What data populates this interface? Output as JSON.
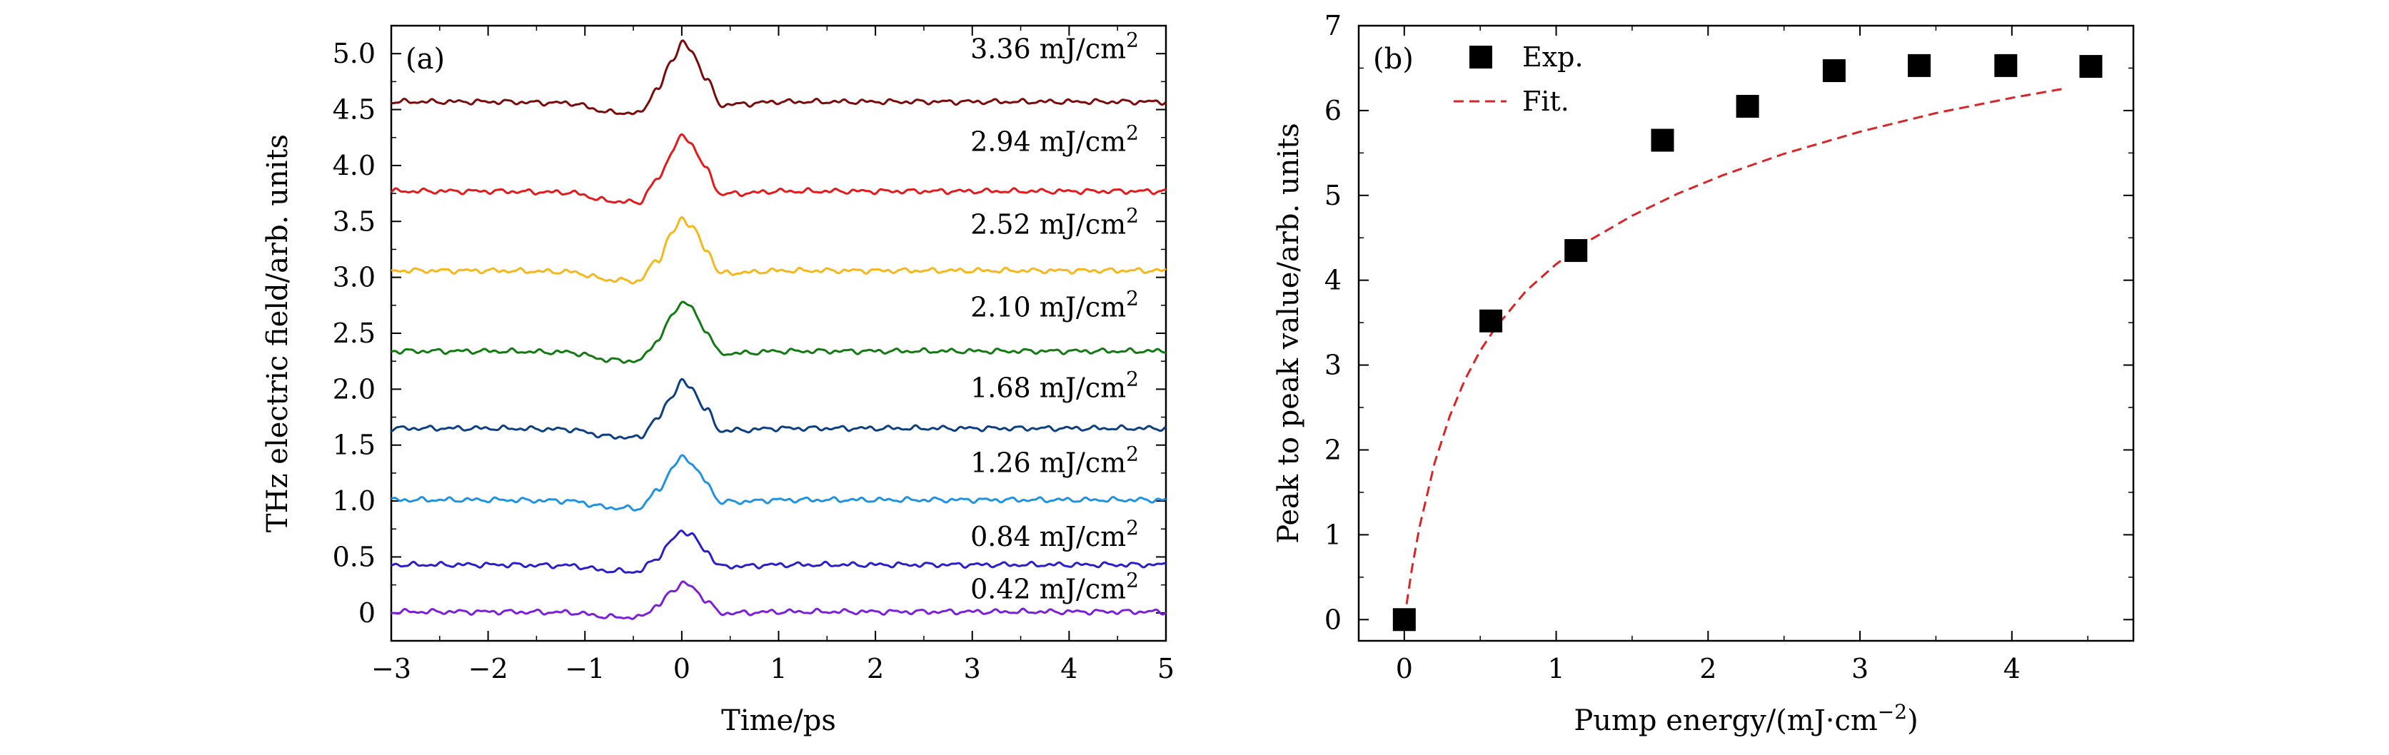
{
  "chart_data": [
    {
      "type": "line",
      "panel_label": "(a)",
      "xlabel": "Time/ps",
      "ylabel": "THz electric field/arb. units",
      "xlim": [
        -3,
        5
      ],
      "ylim": [
        -0.25,
        5.25
      ],
      "xticks": [
        -3,
        -2,
        -1,
        0,
        1,
        2,
        3,
        4,
        5
      ],
      "xtick_labels": [
        "−3",
        "−2",
        "−1",
        "0",
        "1",
        "2",
        "3",
        "4",
        "5"
      ],
      "yticks": [
        0,
        0.5,
        1.0,
        1.5,
        2.0,
        2.5,
        3.0,
        3.5,
        4.0,
        4.5,
        5.0
      ],
      "ytick_labels": [
        "0",
        "0.5",
        "1.0",
        "1.5",
        "2.0",
        "2.5",
        "3.0",
        "3.5",
        "4.0",
        "4.5",
        "5.0"
      ],
      "waveform_shape": {
        "t": [
          -3.0,
          -2.0,
          -1.2,
          -0.7,
          -0.45,
          -0.25,
          -0.1,
          0.0,
          0.1,
          0.25,
          0.4,
          0.6,
          1.0,
          2.0,
          3.0,
          4.0,
          5.0
        ],
        "shape": [
          0.0,
          0.0,
          -0.02,
          -0.18,
          -0.2,
          0.2,
          0.7,
          1.0,
          0.85,
          0.4,
          -0.05,
          -0.04,
          0.0,
          0.0,
          0.0,
          0.0,
          0.0
        ]
      },
      "series": [
        {
          "name": "3.36 mJ/cm",
          "label_base": "3.36 mJ/cm",
          "label_exp": "2",
          "baseline": 4.57,
          "amplitude": 0.53,
          "color": "#7b0a0a"
        },
        {
          "name": "2.94 mJ/cm",
          "label_base": "2.94 mJ/cm",
          "label_exp": "2",
          "baseline": 3.77,
          "amplitude": 0.5,
          "color": "#e31a1c"
        },
        {
          "name": "2.52 mJ/cm",
          "label_base": "2.52 mJ/cm",
          "label_exp": "2",
          "baseline": 3.06,
          "amplitude": 0.47,
          "color": "#f5b71a"
        },
        {
          "name": "2.10 mJ/cm",
          "label_base": "2.10 mJ/cm",
          "label_exp": "2",
          "baseline": 2.34,
          "amplitude": 0.45,
          "color": "#137a13"
        },
        {
          "name": "1.68 mJ/cm",
          "label_base": "1.68 mJ/cm",
          "label_exp": "2",
          "baseline": 1.65,
          "amplitude": 0.42,
          "color": "#0b3f82"
        },
        {
          "name": "1.26 mJ/cm",
          "label_base": "1.26 mJ/cm",
          "label_exp": "2",
          "baseline": 1.01,
          "amplitude": 0.39,
          "color": "#1f92e0"
        },
        {
          "name": "0.84 mJ/cm",
          "label_base": "0.84 mJ/cm",
          "label_exp": "2",
          "baseline": 0.43,
          "amplitude": 0.31,
          "color": "#2a1fc9"
        },
        {
          "name": "0.42 mJ/cm",
          "label_base": "0.42 mJ/cm",
          "label_exp": "2",
          "baseline": 0.01,
          "amplitude": 0.26,
          "color": "#7b1fd8"
        }
      ]
    },
    {
      "type": "scatter",
      "panel_label": "(b)",
      "xlabel_base": "Pump energy/(mJ·cm",
      "xlabel_exp": "−2",
      "xlabel_close": ")",
      "ylabel": "Peak to peak value/arb. units",
      "xlim": [
        -0.3,
        4.8
      ],
      "ylim": [
        -0.25,
        7.0
      ],
      "xticks": [
        0,
        1,
        2,
        3,
        4
      ],
      "xtick_labels": [
        "0",
        "1",
        "2",
        "3",
        "4"
      ],
      "yticks": [
        0,
        1,
        2,
        3,
        4,
        5,
        6,
        7
      ],
      "ytick_labels": [
        "0",
        "1",
        "2",
        "3",
        "4",
        "5",
        "6",
        "7"
      ],
      "legend": {
        "position": "top-left",
        "entries": [
          "Exp.",
          "Fit."
        ]
      },
      "series": [
        {
          "name": "Exp.",
          "marker": "square",
          "color": "#000000",
          "x": [
            0,
            0.57,
            1.13,
            1.7,
            2.26,
            2.83,
            3.39,
            3.96,
            4.52
          ],
          "y": [
            0,
            3.52,
            4.35,
            5.65,
            6.05,
            6.47,
            6.53,
            6.53,
            6.52
          ]
        },
        {
          "name": "Fit.",
          "style": "dashed",
          "color": "#d62728",
          "x": [
            0,
            0.05,
            0.1,
            0.2,
            0.3,
            0.4,
            0.5,
            0.6,
            0.8,
            1.0,
            1.2,
            1.5,
            1.8,
            2.1,
            2.5,
            3.0,
            3.5,
            4.0,
            4.35
          ],
          "y": [
            0,
            0.6,
            1.09,
            1.85,
            2.4,
            2.83,
            3.17,
            3.44,
            3.87,
            4.19,
            4.45,
            4.76,
            5.02,
            5.24,
            5.49,
            5.75,
            5.97,
            6.15,
            6.26
          ]
        }
      ]
    }
  ]
}
